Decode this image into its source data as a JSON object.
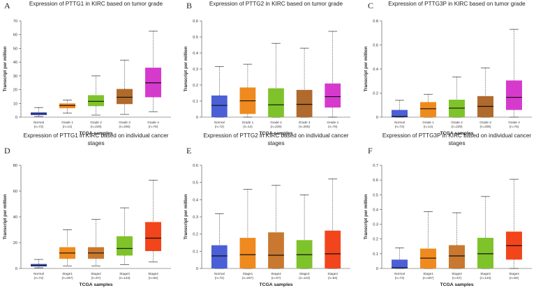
{
  "chart_data": [
    {
      "panel": "A",
      "type": "boxplot",
      "title": "Expression of PTTG1 in KIRC based on tumor grade",
      "xlabel": "TCGA samples",
      "ylabel": "Transcript per million",
      "ylim": [
        0,
        70
      ],
      "yticks": [
        0,
        10,
        20,
        30,
        40,
        50,
        60,
        70
      ],
      "categories": [
        "Normal",
        "Grade 1",
        "Grade 2",
        "Grade 3",
        "Grade 4"
      ],
      "counts": [
        "(n=72)",
        "(n=14)",
        "(n=229)",
        "(n=206)",
        "(n=76)"
      ],
      "colors": [
        "#4b5fd6",
        "#ef8a1e",
        "#7fc32a",
        "#b06a2c",
        "#d63acc"
      ],
      "boxes": [
        {
          "min": 0.5,
          "q1": 1.5,
          "median": 2.5,
          "q3": 3.5,
          "max": 7
        },
        {
          "min": 3,
          "q1": 6.5,
          "median": 8.5,
          "q3": 10,
          "max": 12.5
        },
        {
          "min": 1.5,
          "q1": 8,
          "median": 11.5,
          "q3": 16,
          "max": 30
        },
        {
          "min": 2,
          "q1": 9.5,
          "median": 14.5,
          "q3": 20.5,
          "max": 41.5
        },
        {
          "min": 4,
          "q1": 14.5,
          "median": 25,
          "q3": 36,
          "max": 62.5
        }
      ]
    },
    {
      "panel": "B",
      "type": "boxplot",
      "title": "Expression of PTTG2 in KIRC based on tumor grade",
      "xlabel": "TCGA samples",
      "ylabel": "Transcript per million",
      "ylim": [
        0,
        0.6
      ],
      "yticks": [
        0,
        0.1,
        0.2,
        0.3,
        0.4,
        0.5,
        0.6
      ],
      "categories": [
        "Normal",
        "Grade 1",
        "Grade 2",
        "Grade 3",
        "Grade 4"
      ],
      "counts": [
        "(n=72)",
        "(n=14)",
        "(n=229)",
        "(n=206)",
        "(n=76)"
      ],
      "colors": [
        "#4b5fd6",
        "#ef8a1e",
        "#7fc32a",
        "#b06a2c",
        "#d63acc"
      ],
      "boxes": [
        {
          "min": 0,
          "q1": 0,
          "median": 0.073,
          "q3": 0.135,
          "max": 0.315
        },
        {
          "min": 0,
          "q1": 0.02,
          "median": 0.102,
          "q3": 0.185,
          "max": 0.33
        },
        {
          "min": 0,
          "q1": 0,
          "median": 0.077,
          "q3": 0.18,
          "max": 0.46
        },
        {
          "min": 0,
          "q1": 0,
          "median": 0.08,
          "q3": 0.17,
          "max": 0.43
        },
        {
          "min": 0,
          "q1": 0.06,
          "median": 0.128,
          "q3": 0.21,
          "max": 0.535
        }
      ]
    },
    {
      "panel": "C",
      "type": "boxplot",
      "title": "Expression of PTTG3P in KIRC based on tumor grade",
      "xlabel": "TCGA samples",
      "ylabel": "Transcript per million",
      "ylim": [
        0,
        0.8
      ],
      "yticks": [
        0,
        0.2,
        0.4,
        0.6,
        0.8
      ],
      "categories": [
        "Normal",
        "Grade 1",
        "Grade 2",
        "Grade 3",
        "Grade 4"
      ],
      "counts": [
        "(n=72)",
        "(n=14)",
        "(n=229)",
        "(n=206)",
        "(n=76)"
      ],
      "colors": [
        "#4b5fd6",
        "#ef8a1e",
        "#7fc32a",
        "#b06a2c",
        "#d63acc"
      ],
      "boxes": [
        {
          "min": 0,
          "q1": 0,
          "median": 0.005,
          "q3": 0.06,
          "max": 0.14
        },
        {
          "min": 0,
          "q1": 0,
          "median": 0.07,
          "q3": 0.125,
          "max": 0.19
        },
        {
          "min": 0,
          "q1": 0,
          "median": 0.075,
          "q3": 0.145,
          "max": 0.335
        },
        {
          "min": 0,
          "q1": 0,
          "median": 0.09,
          "q3": 0.175,
          "max": 0.41
        },
        {
          "min": 0,
          "q1": 0.06,
          "median": 0.165,
          "q3": 0.305,
          "max": 0.73
        }
      ]
    },
    {
      "panel": "D",
      "type": "boxplot",
      "title": [
        "Expression of PTTG1 in KIRC based on individual cancer",
        "stages"
      ],
      "xlabel": "TCGA samples",
      "ylabel": "Transcript per million",
      "ylim": [
        0,
        80
      ],
      "yticks": [
        0,
        20,
        40,
        60,
        80
      ],
      "categories": [
        "Normal",
        "Stage1",
        "Stage2",
        "Stage3",
        "Stage4"
      ],
      "counts": [
        "(n=72)",
        "(n=267)",
        "(n=57)",
        "(n=123)",
        "(n=84)"
      ],
      "colors": [
        "#4b5fd6",
        "#ef8a1e",
        "#c8782f",
        "#7fc32a",
        "#f2451c"
      ],
      "boxes": [
        {
          "min": 0.5,
          "q1": 1.5,
          "median": 2.5,
          "q3": 3.5,
          "max": 7
        },
        {
          "min": 2,
          "q1": 7.5,
          "median": 12,
          "q3": 16.5,
          "max": 30
        },
        {
          "min": 2,
          "q1": 7.5,
          "median": 12,
          "q3": 16.5,
          "max": 38
        },
        {
          "min": 3,
          "q1": 10,
          "median": 15.5,
          "q3": 25,
          "max": 47
        },
        {
          "min": 5,
          "q1": 13.5,
          "median": 23.5,
          "q3": 36,
          "max": 68.5
        }
      ]
    },
    {
      "panel": "E",
      "type": "boxplot",
      "title": [
        "Expression of PTTG2 in KIRC based on individual cancer",
        "stages"
      ],
      "xlabel": "TCGA samples",
      "ylabel": "Transcript per million",
      "ylim": [
        0,
        0.6
      ],
      "yticks": [
        0,
        0.1,
        0.2,
        0.3,
        0.4,
        0.5,
        0.6
      ],
      "categories": [
        "Normal",
        "Stage1",
        "Stage2",
        "Stage3",
        "Stage4"
      ],
      "counts": [
        "(n=72)",
        "(n=267)",
        "(n=57)",
        "(n=123)",
        "(n=84)"
      ],
      "colors": [
        "#4b5fd6",
        "#ef8a1e",
        "#c8782f",
        "#7fc32a",
        "#f2451c"
      ],
      "boxes": [
        {
          "min": 0,
          "q1": 0,
          "median": 0.073,
          "q3": 0.135,
          "max": 0.318
        },
        {
          "min": 0,
          "q1": 0,
          "median": 0.08,
          "q3": 0.178,
          "max": 0.46
        },
        {
          "min": 0,
          "q1": 0,
          "median": 0.077,
          "q3": 0.21,
          "max": 0.483
        },
        {
          "min": 0,
          "q1": 0,
          "median": 0.08,
          "q3": 0.165,
          "max": 0.428
        },
        {
          "min": 0,
          "q1": 0,
          "median": 0.085,
          "q3": 0.22,
          "max": 0.52
        }
      ]
    },
    {
      "panel": "F",
      "type": "boxplot",
      "title": [
        "Expression of PTTG3P in KIRC based on individual cancer",
        "stages"
      ],
      "xlabel": "TCGA samples",
      "ylabel": "Transcript per million",
      "ylim": [
        0,
        0.7
      ],
      "yticks": [
        0,
        0.1,
        0.2,
        0.3,
        0.4,
        0.5,
        0.6,
        0.7
      ],
      "categories": [
        "Normal",
        "Stage1",
        "Stage2",
        "Stage3",
        "Stage4"
      ],
      "counts": [
        "(n=72)",
        "(n=267)",
        "(n=57)",
        "(n=123)",
        "(n=84)"
      ],
      "colors": [
        "#4b5fd6",
        "#ef8a1e",
        "#c8782f",
        "#7fc32a",
        "#f2451c"
      ],
      "boxes": [
        {
          "min": 0,
          "q1": 0,
          "median": 0.005,
          "q3": 0.06,
          "max": 0.14
        },
        {
          "min": 0,
          "q1": 0,
          "median": 0.07,
          "q3": 0.135,
          "max": 0.385
        },
        {
          "min": 0,
          "q1": 0,
          "median": 0.085,
          "q3": 0.158,
          "max": 0.378
        },
        {
          "min": 0,
          "q1": 0,
          "median": 0.1,
          "q3": 0.208,
          "max": 0.488
        },
        {
          "min": 0,
          "q1": 0.06,
          "median": 0.155,
          "q3": 0.25,
          "max": 0.605
        }
      ]
    }
  ]
}
